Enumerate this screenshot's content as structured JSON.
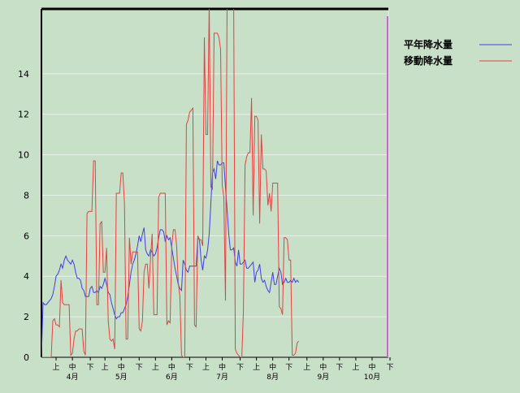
{
  "chart_data": {
    "type": "line",
    "title": "",
    "xlabel": "",
    "ylabel": "",
    "ylim": [
      0,
      17.2
    ],
    "y_ticks": [
      0,
      2,
      4,
      6,
      8,
      10,
      12,
      14
    ],
    "grid": true,
    "legend_position": "top-right",
    "colors": {
      "background": "#c8dfc8",
      "grid": "#e8f2e8",
      "axis": "#000000",
      "end_marker": "#cc66cc"
    },
    "x_axis": {
      "n_points": 214,
      "dekad_labels": [
        "上",
        "中",
        "下",
        "上",
        "中",
        "下",
        "上",
        "中",
        "下",
        "上",
        "中",
        "下",
        "上",
        "中",
        "下",
        "上",
        "中",
        "下",
        "上",
        "中",
        "下"
      ],
      "dekad_positions": [
        9,
        19,
        30,
        39,
        49,
        60,
        70,
        80,
        91,
        101,
        111,
        122,
        132,
        142,
        152,
        163,
        173,
        183,
        193,
        203,
        214
      ],
      "month_labels": [
        "4月",
        "5月",
        "6月",
        "7月",
        "8月",
        "9月",
        "10月"
      ],
      "month_positions": [
        19,
        49,
        80,
        111,
        142,
        173,
        203
      ]
    },
    "series": [
      {
        "name": "平年降水量",
        "color": "#4040e0",
        "points": [
          [
            0,
            0
          ],
          [
            1,
            2.7
          ],
          [
            2,
            2.6
          ],
          [
            3,
            2.6
          ],
          [
            4,
            2.7
          ],
          [
            5,
            2.8
          ],
          [
            6,
            2.9
          ],
          [
            7,
            3.1
          ],
          [
            8,
            3.5
          ],
          [
            9,
            4
          ],
          [
            10,
            4.1
          ],
          [
            11,
            4.3
          ],
          [
            12,
            4.6
          ],
          [
            13,
            4.4
          ],
          [
            14,
            4.8
          ],
          [
            15,
            5
          ],
          [
            16,
            4.8
          ],
          [
            17,
            4.7
          ],
          [
            18,
            4.6
          ],
          [
            19,
            4.8
          ],
          [
            20,
            4.6
          ],
          [
            21,
            4.2
          ],
          [
            22,
            3.9
          ],
          [
            23,
            3.9
          ],
          [
            24,
            3.8
          ],
          [
            25,
            3.4
          ],
          [
            26,
            3.3
          ],
          [
            27,
            3
          ],
          [
            28,
            3
          ],
          [
            29,
            3
          ],
          [
            30,
            3.4
          ],
          [
            31,
            3.5
          ],
          [
            32,
            3.2
          ],
          [
            33,
            3.2
          ],
          [
            34,
            3.3
          ],
          [
            35,
            3.2
          ],
          [
            36,
            3.5
          ],
          [
            37,
            3.4
          ],
          [
            38,
            3.6
          ],
          [
            39,
            3.9
          ],
          [
            40,
            3.6
          ],
          [
            41,
            3.2
          ],
          [
            42,
            3.1
          ],
          [
            43,
            2.7
          ],
          [
            44,
            2.4
          ],
          [
            45,
            2.1
          ],
          [
            46,
            1.9
          ],
          [
            47,
            2
          ],
          [
            48,
            2
          ],
          [
            49,
            2.2
          ],
          [
            50,
            2.2
          ],
          [
            51,
            2.4
          ],
          [
            52,
            2.6
          ],
          [
            53,
            3
          ],
          [
            54,
            3.6
          ],
          [
            55,
            4.2
          ],
          [
            56,
            4.6
          ],
          [
            57,
            4.8
          ],
          [
            58,
            5.1
          ],
          [
            59,
            5.5
          ],
          [
            60,
            6
          ],
          [
            61,
            5.7
          ],
          [
            62,
            6.1
          ],
          [
            63,
            6.4
          ],
          [
            64,
            5.3
          ],
          [
            65,
            5.1
          ],
          [
            66,
            5
          ],
          [
            67,
            5.3
          ],
          [
            68,
            5.2
          ],
          [
            69,
            5
          ],
          [
            70,
            5.1
          ],
          [
            71,
            5.4
          ],
          [
            72,
            5.9
          ],
          [
            73,
            6.3
          ],
          [
            74,
            6.3
          ],
          [
            75,
            6.2
          ],
          [
            76,
            5.7
          ],
          [
            77,
            6
          ],
          [
            78,
            5.8
          ],
          [
            79,
            5.9
          ],
          [
            80,
            5.4
          ],
          [
            81,
            4.9
          ],
          [
            82,
            4.4
          ],
          [
            83,
            4
          ],
          [
            84,
            3.6
          ],
          [
            85,
            3.4
          ],
          [
            86,
            3.3
          ],
          [
            87,
            4.8
          ],
          [
            88,
            4.6
          ],
          [
            89,
            4.3
          ],
          [
            90,
            4.2
          ],
          [
            91,
            4.5
          ],
          [
            92,
            4.5
          ],
          [
            93,
            4.5
          ],
          [
            94,
            4.5
          ],
          [
            95,
            4.5
          ],
          [
            96,
            5.9
          ],
          [
            97,
            5.8
          ],
          [
            98,
            4.8
          ],
          [
            99,
            4.3
          ],
          [
            100,
            5
          ],
          [
            101,
            4.9
          ],
          [
            102,
            5.3
          ],
          [
            103,
            6.1
          ],
          [
            104,
            7.6
          ],
          [
            105,
            9.1
          ],
          [
            106,
            9.3
          ],
          [
            107,
            8.8
          ],
          [
            108,
            9.7
          ],
          [
            109,
            9.5
          ],
          [
            110,
            9.5
          ],
          [
            111,
            9.6
          ],
          [
            112,
            9.6
          ],
          [
            113,
            8.4
          ],
          [
            114,
            7.3
          ],
          [
            115,
            6.1
          ],
          [
            116,
            5.3
          ],
          [
            117,
            5.3
          ],
          [
            118,
            5.4
          ],
          [
            119,
            4.7
          ],
          [
            120,
            4.5
          ],
          [
            121,
            5.3
          ],
          [
            122,
            4.6
          ],
          [
            123,
            4.6
          ],
          [
            124,
            4.7
          ],
          [
            125,
            4.8
          ],
          [
            126,
            4.4
          ],
          [
            127,
            4.4
          ],
          [
            128,
            4.5
          ],
          [
            129,
            4.6
          ],
          [
            130,
            4.7
          ],
          [
            131,
            3.7
          ],
          [
            132,
            4.2
          ],
          [
            133,
            4.3
          ],
          [
            134,
            4.6
          ],
          [
            135,
            3.9
          ],
          [
            136,
            3.7
          ],
          [
            137,
            3.8
          ],
          [
            138,
            3.5
          ],
          [
            139,
            3.3
          ],
          [
            140,
            3.2
          ],
          [
            141,
            3.7
          ],
          [
            142,
            4.2
          ],
          [
            143,
            3.6
          ],
          [
            144,
            3.6
          ],
          [
            145,
            4
          ],
          [
            146,
            4.4
          ],
          [
            147,
            4.2
          ],
          [
            148,
            3.6
          ],
          [
            149,
            3.7
          ],
          [
            150,
            3.9
          ],
          [
            151,
            3.7
          ],
          [
            152,
            3.7
          ],
          [
            153,
            3.8
          ],
          [
            154,
            3.7
          ],
          [
            155,
            3.9
          ],
          [
            156,
            3.7
          ],
          [
            157,
            3.8
          ],
          [
            158,
            3.7
          ]
        ]
      },
      {
        "name": "移動降水量",
        "color": "#e84040",
        "points": [
          [
            0,
            0
          ],
          [
            3,
            0
          ],
          [
            5,
            0
          ],
          [
            6,
            0
          ],
          [
            7,
            1.8
          ],
          [
            8,
            1.9
          ],
          [
            9,
            1.6
          ],
          [
            10,
            1.6
          ],
          [
            11,
            1.5
          ],
          [
            12,
            3.8
          ],
          [
            13,
            2.7
          ],
          [
            14,
            2.6
          ],
          [
            15,
            2.6
          ],
          [
            16,
            2.6
          ],
          [
            17,
            2.6
          ],
          [
            18,
            0.1
          ],
          [
            19,
            0.2
          ],
          [
            20,
            0.9
          ],
          [
            21,
            1.3
          ],
          [
            22,
            1.3
          ],
          [
            23,
            1.4
          ],
          [
            24,
            1.4
          ],
          [
            25,
            1.4
          ],
          [
            26,
            0.3
          ],
          [
            27,
            0.1
          ],
          [
            28,
            7.1
          ],
          [
            29,
            7.2
          ],
          [
            30,
            7.2
          ],
          [
            31,
            7.2
          ],
          [
            32,
            9.7
          ],
          [
            33,
            9.7
          ],
          [
            34,
            2.6
          ],
          [
            35,
            2.6
          ],
          [
            36,
            6.6
          ],
          [
            37,
            6.7
          ],
          [
            38,
            4.2
          ],
          [
            39,
            4.2
          ],
          [
            40,
            5.4
          ],
          [
            41,
            1.8
          ],
          [
            42,
            0.9
          ],
          [
            43,
            0.8
          ],
          [
            44,
            0.9
          ],
          [
            45,
            0.4
          ],
          [
            46,
            8.1
          ],
          [
            47,
            8.1
          ],
          [
            48,
            8.1
          ],
          [
            49,
            9.1
          ],
          [
            50,
            9.1
          ],
          [
            51,
            7.6
          ],
          [
            52,
            0.9
          ],
          [
            53,
            0.9
          ],
          [
            54,
            5.9
          ],
          [
            55,
            4.6
          ],
          [
            56,
            5.2
          ],
          [
            57,
            5.2
          ],
          [
            58,
            5.2
          ],
          [
            59,
            5.2
          ],
          [
            60,
            1.4
          ],
          [
            61,
            1.3
          ],
          [
            62,
            1.8
          ],
          [
            63,
            4.2
          ],
          [
            64,
            4.6
          ],
          [
            65,
            4.6
          ],
          [
            66,
            3.4
          ],
          [
            67,
            4.9
          ],
          [
            68,
            6.1
          ],
          [
            69,
            2.1
          ],
          [
            70,
            2.1
          ],
          [
            71,
            2.1
          ],
          [
            72,
            7.9
          ],
          [
            73,
            8.1
          ],
          [
            74,
            8.1
          ],
          [
            75,
            8.1
          ],
          [
            76,
            8.1
          ],
          [
            77,
            1.6
          ],
          [
            78,
            1.8
          ],
          [
            79,
            1.7
          ],
          [
            80,
            5.5
          ],
          [
            81,
            6.3
          ],
          [
            82,
            6.3
          ],
          [
            83,
            5.5
          ],
          [
            84,
            3.7
          ],
          [
            85,
            3
          ],
          [
            86,
            0.1
          ],
          [
            87,
            0
          ],
          [
            88,
            0
          ],
          [
            89,
            11.5
          ],
          [
            90,
            11.7
          ],
          [
            91,
            12.1
          ],
          [
            92,
            12.2
          ],
          [
            93,
            12.3
          ],
          [
            94,
            1.6
          ],
          [
            95,
            1.5
          ],
          [
            96,
            6
          ],
          [
            97,
            5.8
          ],
          [
            98,
            5.8
          ],
          [
            99,
            5.5
          ],
          [
            100,
            15.8
          ],
          [
            101,
            11
          ],
          [
            102,
            11
          ],
          [
            103,
            17.5
          ],
          [
            104,
            8.4
          ],
          [
            105,
            8.3
          ],
          [
            106,
            16
          ],
          [
            107,
            16
          ],
          [
            108,
            16
          ],
          [
            109,
            15.8
          ],
          [
            110,
            15.2
          ],
          [
            111,
            8.5
          ],
          [
            112,
            7.9
          ],
          [
            113,
            2.8
          ],
          [
            114,
            17.5
          ],
          [
            115,
            17.5
          ],
          [
            116,
            17.5
          ],
          [
            117,
            17.5
          ],
          [
            118,
            17.5
          ],
          [
            119,
            0.4
          ],
          [
            120,
            0.2
          ],
          [
            121,
            0.1
          ],
          [
            122,
            0
          ],
          [
            123,
            0
          ],
          [
            124,
            2.3
          ],
          [
            125,
            9.5
          ],
          [
            126,
            9.9
          ],
          [
            127,
            10.1
          ],
          [
            128,
            10.1
          ],
          [
            129,
            12.8
          ],
          [
            130,
            7
          ],
          [
            131,
            11.9
          ],
          [
            132,
            11.9
          ],
          [
            133,
            11.7
          ],
          [
            134,
            6.6
          ],
          [
            135,
            11
          ],
          [
            136,
            9.3
          ],
          [
            137,
            9.3
          ],
          [
            138,
            9.2
          ],
          [
            139,
            7.5
          ],
          [
            140,
            8.1
          ],
          [
            141,
            7.2
          ],
          [
            142,
            8.6
          ],
          [
            143,
            8.6
          ],
          [
            144,
            8.6
          ],
          [
            145,
            8.6
          ],
          [
            146,
            2.5
          ],
          [
            147,
            2.4
          ],
          [
            148,
            2.1
          ],
          [
            149,
            5.9
          ],
          [
            150,
            5.9
          ],
          [
            151,
            5.8
          ],
          [
            152,
            4.8
          ],
          [
            153,
            4.8
          ],
          [
            154,
            0.1
          ],
          [
            155,
            0.1
          ],
          [
            156,
            0.2
          ],
          [
            157,
            0.7
          ],
          [
            158,
            0.8
          ]
        ]
      }
    ]
  }
}
